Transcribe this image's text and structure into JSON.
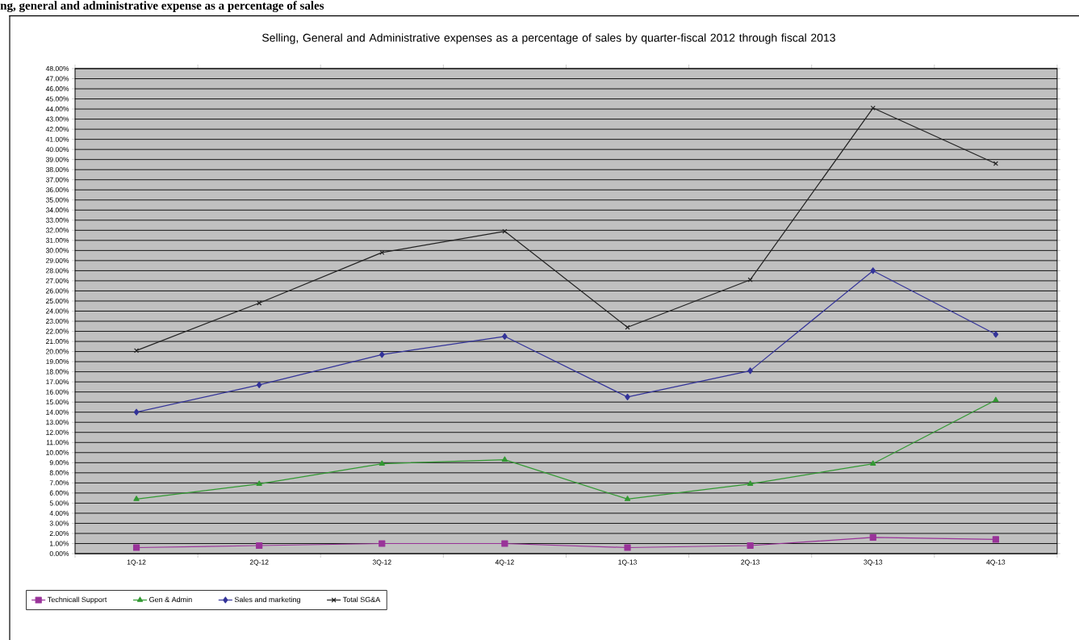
{
  "chart_data": {
    "type": "line",
    "title": "Selling, General and Administrative expenses as a percentage of sales by quarter-fiscal 2012 through fiscal 2013",
    "annotations": [
      "ng, general and administrative expense as a percentage of sales"
    ],
    "categories": [
      "1Q-12",
      "2Q-12",
      "3Q-12",
      "4Q-12",
      "1Q-13",
      "2Q-13",
      "3Q-13",
      "4Q-13"
    ],
    "series": [
      {
        "name": "Technicall Support",
        "color": "#993399",
        "marker": "square",
        "values": [
          0.6,
          0.8,
          1.0,
          1.0,
          0.6,
          0.8,
          1.6,
          1.4
        ]
      },
      {
        "name": "Gen & Admin",
        "color": "#339933",
        "marker": "triangle",
        "values": [
          5.4,
          6.9,
          8.9,
          9.3,
          5.4,
          6.9,
          8.9,
          15.2
        ]
      },
      {
        "name": "Sales and marketing",
        "color": "#333399",
        "marker": "diamond",
        "values": [
          14.0,
          16.7,
          19.7,
          21.5,
          15.5,
          18.1,
          28.0,
          21.7
        ]
      },
      {
        "name": "Total SG&A",
        "color": "#222222",
        "marker": "cross",
        "values": [
          20.1,
          24.8,
          29.8,
          31.9,
          22.4,
          27.1,
          44.1,
          38.6
        ]
      }
    ],
    "ylim": [
      0,
      48
    ],
    "yticks": [
      {
        "value": 0,
        "label": "0.00%"
      },
      {
        "value": 1,
        "label": "1.00%"
      },
      {
        "value": 2,
        "label": "2.00%"
      },
      {
        "value": 3,
        "label": "3.00%"
      },
      {
        "value": 4,
        "label": "4.00%"
      },
      {
        "value": 5,
        "label": "5.00%"
      },
      {
        "value": 6,
        "label": "6.00%"
      },
      {
        "value": 7,
        "label": "7.00%"
      },
      {
        "value": 8,
        "label": "8.00%"
      },
      {
        "value": 9,
        "label": "9.00%"
      },
      {
        "value": 10,
        "label": "10.00%"
      },
      {
        "value": 11,
        "label": "11.00%"
      },
      {
        "value": 12,
        "label": "12.00%"
      },
      {
        "value": 13,
        "label": "13.00%"
      },
      {
        "value": 14,
        "label": "14.00%"
      },
      {
        "value": 15,
        "label": "15.00%"
      },
      {
        "value": 16,
        "label": "16.00%"
      },
      {
        "value": 17,
        "label": "17.00%"
      },
      {
        "value": 18,
        "label": "18.00%"
      },
      {
        "value": 19,
        "label": "19.00%"
      },
      {
        "value": 20,
        "label": "20.00%"
      },
      {
        "value": 21,
        "label": "21.00%"
      },
      {
        "value": 22,
        "label": "22.00%"
      },
      {
        "value": 23,
        "label": "23.00%"
      },
      {
        "value": 24,
        "label": "24.00%"
      },
      {
        "value": 25,
        "label": "25.00%"
      },
      {
        "value": 26,
        "label": "26.00%"
      },
      {
        "value": 27,
        "label": "27.00%"
      },
      {
        "value": 28,
        "label": "28.00%"
      },
      {
        "value": 29,
        "label": "29.00%"
      },
      {
        "value": 30,
        "label": "30.00%"
      },
      {
        "value": 31,
        "label": "31.00%"
      },
      {
        "value": 32,
        "label": "32.00%"
      },
      {
        "value": 33,
        "label": "33.00%"
      },
      {
        "value": 34,
        "label": "34.00%"
      },
      {
        "value": 35,
        "label": "35.00%"
      },
      {
        "value": 36,
        "label": "36.00%"
      },
      {
        "value": 37,
        "label": "37.00%"
      },
      {
        "value": 38,
        "label": "38.00%"
      },
      {
        "value": 39,
        "label": "39.00%"
      },
      {
        "value": 40,
        "label": "40.00%"
      },
      {
        "value": 41,
        "label": "41.00%"
      },
      {
        "value": 42,
        "label": "42.00%"
      },
      {
        "value": 43,
        "label": "43.00%"
      },
      {
        "value": 44,
        "label": "44.00%"
      },
      {
        "value": 45,
        "label": "45.00%"
      },
      {
        "value": 46,
        "label": "46.00%"
      },
      {
        "value": 47,
        "label": "47.00%"
      },
      {
        "value": 48,
        "label": "48.00%"
      }
    ],
    "grid": "y",
    "legend": "bottom left",
    "line_style": "solid"
  }
}
